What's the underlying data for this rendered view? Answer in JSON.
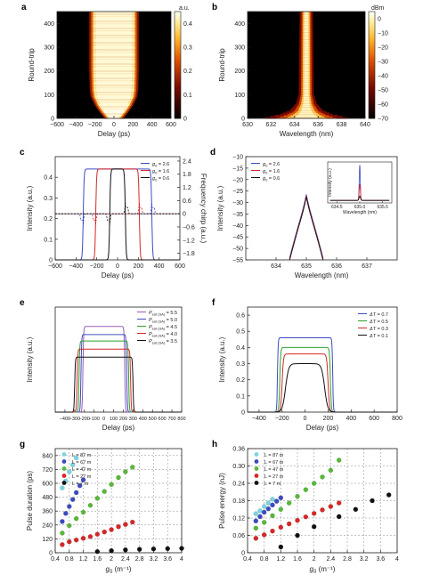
{
  "chart_data": [
    {
      "id": "a",
      "panel_label": "a",
      "type": "heatmap",
      "xlabel": "Delay (ps)",
      "ylabel": "Round-trip",
      "xlim": [
        -600,
        600
      ],
      "ylim": [
        0,
        450
      ],
      "xticks": [
        -600,
        -400,
        -200,
        0,
        200,
        400,
        600
      ],
      "yticks": [
        0,
        100,
        200,
        300,
        400
      ],
      "colorbar": {
        "unit": "a.u.",
        "ticks": [
          "0.4",
          "0.3",
          "0.2",
          "0.1",
          "0"
        ],
        "tick_values": [
          0.4,
          0.3,
          0.2,
          0.1,
          0
        ],
        "range": [
          0,
          0.45
        ]
      },
      "trace": {
        "type": "pulse-window",
        "rows": [
          [
            0,
            60,
            200
          ],
          [
            30,
            120,
            280
          ],
          [
            60,
            170,
            300
          ],
          [
            90,
            205,
            320
          ],
          [
            120,
            215,
            320
          ],
          [
            200,
            220,
            320
          ],
          [
            450,
            220,
            320
          ]
        ]
      },
      "grid": false
    },
    {
      "id": "b",
      "panel_label": "b",
      "type": "heatmap",
      "xlabel": "Wavelength (nm)",
      "ylabel": "Round-trip",
      "xlim": [
        630,
        640
      ],
      "ylim": [
        0,
        450
      ],
      "xticks": [
        630,
        632,
        634,
        636,
        638,
        640
      ],
      "yticks": [
        0,
        100,
        200,
        300,
        400
      ],
      "colorbar": {
        "unit": "dBm",
        "ticks": [
          "0",
          "-10",
          "-20",
          "-30",
          "-40",
          "-50",
          "-60",
          "-70"
        ],
        "tick_values": [
          0,
          -10,
          -20,
          -30,
          -40,
          -50,
          -60,
          -70
        ],
        "range": [
          -70,
          5
        ]
      },
      "trace": {
        "type": "spectrum-line",
        "center": 635.0,
        "rows": [
          [
            0,
            2.2
          ],
          [
            15,
            1.4
          ],
          [
            30,
            0.9
          ],
          [
            60,
            0.55
          ],
          [
            100,
            0.4
          ],
          [
            450,
            0.35
          ]
        ]
      },
      "grid": false
    },
    {
      "id": "c",
      "panel_label": "c",
      "type": "line",
      "xlabel": "Delay (ps)",
      "ylabel": "Intensity (a.u.)",
      "y2label": "Frequency chirp (a.u.)",
      "xlim": [
        -600,
        600
      ],
      "ylim": [
        0,
        0.5
      ],
      "y2lim": [
        -2.1,
        2.6
      ],
      "xticks": [
        -600,
        -400,
        -200,
        0,
        200,
        400,
        600
      ],
      "yticks": [
        0.0,
        0.1,
        0.2,
        0.3,
        0.4
      ],
      "y2ticks": [
        -1.8,
        -1.2,
        -0.6,
        0.0,
        0.6,
        1.2,
        1.8,
        2.4
      ],
      "legend_position": "top-right",
      "series": [
        {
          "name": "g0 = 2.6",
          "sub": "0",
          "label_pre": "g",
          "label_post": " = 2.6",
          "color": "#3b4cc0",
          "values": {
            "amp": 0.44,
            "x1": -330,
            "x2": 330,
            "edge": 14
          },
          "chirp": {
            "x1": -330,
            "x2": 330,
            "level": 0.82,
            "edge": 14
          }
        },
        {
          "name": "g0 = 1.6",
          "sub": "0",
          "label_pre": "g",
          "label_post": " = 1.6",
          "color": "#d62728",
          "values": {
            "amp": 0.44,
            "x1": -210,
            "x2": 210,
            "edge": 14
          },
          "chirp": {
            "x1": -210,
            "x2": 210,
            "level": 0.82,
            "edge": 14
          }
        },
        {
          "name": "g0 = 0.6",
          "sub": "0",
          "label_pre": "g",
          "label_post": " = 0.6",
          "color": "#111111",
          "values": {
            "amp": 0.44,
            "x1": -75,
            "x2": 75,
            "edge": 14
          },
          "chirp": {
            "x1": -75,
            "x2": 75,
            "level": 0.82,
            "edge": 14
          }
        }
      ],
      "hline_chirp": 0.0,
      "grid": false
    },
    {
      "id": "d",
      "panel_label": "d",
      "type": "line",
      "xlabel": "Wavelength (nm)",
      "ylabel": "Intensity (a.u.)",
      "xlim": [
        633,
        638
      ],
      "ylim": [
        -55,
        -10
      ],
      "xticks": [
        634,
        635,
        636,
        637
      ],
      "yticks": [
        -55,
        -50,
        -45,
        -40,
        -35,
        -30,
        -25,
        -20,
        -15,
        -10
      ],
      "legend_position": "top-left",
      "series": [
        {
          "name": "g0 = 2.6",
          "sub": "0",
          "label_pre": "g",
          "label_post": " = 2.6",
          "color": "#3b4cc0",
          "values": {
            "center": 635.0,
            "peak": -26.5,
            "width": 0.09,
            "decay": 15
          }
        },
        {
          "name": "g0 = 1.6",
          "sub": "0",
          "label_pre": "g",
          "label_post": " = 1.6",
          "color": "#d62728",
          "values": {
            "center": 635.0,
            "peak": -27.0,
            "width": 0.085,
            "decay": 15
          }
        },
        {
          "name": "g0 = 0.6",
          "sub": "0",
          "label_pre": "g",
          "label_post": " = 0.6",
          "color": "#111111",
          "values": {
            "center": 635.0,
            "peak": -27.5,
            "width": 0.08,
            "decay": 15
          }
        }
      ],
      "inset": {
        "xlabel": "Wavelength (nm)",
        "ylabel": "Intensity (a.u.)",
        "xlim": [
          634.3,
          635.7
        ],
        "xticks": [
          634.5,
          635.0,
          635.5
        ],
        "series": [
          {
            "color": "#3b4cc0",
            "center": 635.0,
            "height": 1.0,
            "width": 0.012
          },
          {
            "color": "#d62728",
            "center": 635.0,
            "height": 0.45,
            "width": 0.014
          },
          {
            "color": "#111111",
            "center": 635.0,
            "height": 0.12,
            "width": 0.016
          }
        ]
      },
      "grid": false
    },
    {
      "id": "e",
      "panel_label": "e",
      "type": "line",
      "xlabel": "Delay (ps)",
      "ylabel": "Intensity (a.u.)",
      "xlim": [
        -500,
        800
      ],
      "ylim": [
        0,
        0.65
      ],
      "xticks": [
        -400,
        -300,
        -200,
        -100,
        0,
        100,
        200,
        300,
        400,
        500,
        600,
        700,
        800
      ],
      "xtick_labels": [
        "-400",
        "-300",
        "-200",
        "-100",
        "0",
        "100",
        "200",
        "300",
        "400",
        "500",
        "600",
        "700",
        "800"
      ],
      "yticks": [],
      "legend_position": "top-right",
      "series": [
        {
          "name": "Psat(sa) = 5.5",
          "label_pre": "P",
          "sub": "sat (SA)",
          "label_post": " = 5.5",
          "color": "#9b59b6",
          "values": {
            "amp": 0.53,
            "x1": -215,
            "x2": 215,
            "edge": 12
          }
        },
        {
          "name": "Psat(sa) = 5.0",
          "label_pre": "P",
          "sub": "sat (SA)",
          "label_post": " = 5.0",
          "color": "#3b4cc0",
          "values": {
            "amp": 0.48,
            "x1": -235,
            "x2": 235,
            "edge": 12
          }
        },
        {
          "name": "Psat(sa) = 4.5",
          "label_pre": "P",
          "sub": "sat (SA)",
          "label_post": " = 4.5",
          "color": "#2ca02c",
          "values": {
            "amp": 0.44,
            "x1": -255,
            "x2": 255,
            "edge": 12
          }
        },
        {
          "name": "Psat(sa) = 4.0",
          "label_pre": "P",
          "sub": "sat (SA)",
          "label_post": " = 4.0",
          "color": "#d62728",
          "values": {
            "amp": 0.39,
            "x1": -275,
            "x2": 275,
            "edge": 12
          }
        },
        {
          "name": "Psat(sa) = 3.5",
          "label_pre": "P",
          "sub": "sat (SA)",
          "label_post": " = 3.5",
          "color": "#111111",
          "values": {
            "amp": 0.34,
            "x1": -300,
            "x2": 300,
            "edge": 12
          }
        }
      ],
      "grid": false
    },
    {
      "id": "f",
      "panel_label": "f",
      "type": "line",
      "xlabel": "Delay (ps)",
      "ylabel": "Intensity (a.u.)",
      "xlim": [
        -500,
        800
      ],
      "ylim": [
        0,
        0.65
      ],
      "xticks": [
        -400,
        -200,
        0,
        200,
        400,
        600,
        800
      ],
      "yticks": [
        0.0,
        0.1,
        0.2,
        0.3,
        0.4,
        0.5,
        0.6
      ],
      "legend_position": "top-right",
      "series": [
        {
          "name": "ΔT = 0.7",
          "label_pre": "ΔT",
          "sub": "",
          "label_post": " = 0.7",
          "color": "#3b4cc0",
          "values": {
            "amp": 0.46,
            "x1": -240,
            "x2": 240,
            "edge": 10
          }
        },
        {
          "name": "ΔT = 0.5",
          "label_pre": "ΔT",
          "sub": "",
          "label_post": " = 0.5",
          "color": "#2ca02c",
          "values": {
            "amp": 0.4,
            "x1": -220,
            "x2": 220,
            "edge": 14
          }
        },
        {
          "name": "ΔT = 0.3",
          "label_pre": "ΔT",
          "sub": "",
          "label_post": " = 0.3",
          "color": "#d62728",
          "values": {
            "amp": 0.36,
            "x1": -200,
            "x2": 200,
            "edge": 20
          }
        },
        {
          "name": "ΔT = 0.1",
          "label_pre": "ΔT",
          "sub": "",
          "label_post": " = 0.1",
          "color": "#111111",
          "values": {
            "amp": 0.3,
            "x1": -170,
            "x2": 170,
            "edge": 45
          }
        }
      ],
      "grid": false
    },
    {
      "id": "g",
      "panel_label": "g",
      "type": "scatter",
      "xlabel_pre": "g",
      "xlabel_sub": "0",
      "xlabel_post": " (m⁻¹)",
      "ylabel": "Pulse duration (ps)",
      "xlim": [
        0.4,
        4.0
      ],
      "ylim": [
        0,
        900
      ],
      "xticks": [
        0.4,
        0.8,
        1.2,
        1.6,
        2.0,
        2.4,
        2.8,
        3.2,
        3.6,
        4.0
      ],
      "yticks": [
        0,
        120,
        240,
        360,
        480,
        600,
        720,
        840
      ],
      "legend_position": "top-left",
      "series": [
        {
          "name": "L = 87 m",
          "color": "#7fd3e0",
          "points": [
            [
              0.6,
              560
            ],
            [
              0.7,
              620
            ],
            [
              0.8,
              700
            ],
            [
              0.9,
              760
            ],
            [
              1.0,
              820
            ]
          ]
        },
        {
          "name": "L = 67 m",
          "color": "#3b4cc0",
          "points": [
            [
              0.6,
              270
            ],
            [
              0.7,
              340
            ],
            [
              0.8,
              400
            ],
            [
              0.9,
              460
            ],
            [
              1.0,
              520
            ],
            [
              1.1,
              580
            ],
            [
              1.2,
              630
            ]
          ]
        },
        {
          "name": "L = 47 m",
          "color": "#58b83a",
          "points": [
            [
              0.6,
              170
            ],
            [
              0.8,
              235
            ],
            [
              1.0,
              295
            ],
            [
              1.2,
              350
            ],
            [
              1.4,
              410
            ],
            [
              1.6,
              470
            ],
            [
              1.8,
              530
            ],
            [
              2.0,
              590
            ],
            [
              2.2,
              650
            ],
            [
              2.4,
              700
            ],
            [
              2.6,
              740
            ]
          ]
        },
        {
          "name": "L = 27 m",
          "color": "#d62728",
          "points": [
            [
              0.6,
              70
            ],
            [
              0.8,
              95
            ],
            [
              1.0,
              110
            ],
            [
              1.2,
              125
            ],
            [
              1.4,
              140
            ],
            [
              1.6,
              160
            ],
            [
              1.8,
              180
            ],
            [
              2.0,
              200
            ],
            [
              2.2,
              225
            ],
            [
              2.4,
              245
            ],
            [
              2.6,
              265
            ]
          ]
        },
        {
          "name": "L = 7 m",
          "color": "#111111",
          "points": [
            [
              1.6,
              10
            ],
            [
              2.0,
              18
            ],
            [
              2.4,
              25
            ],
            [
              2.8,
              30
            ],
            [
              3.2,
              33
            ],
            [
              3.6,
              36
            ],
            [
              4.0,
              38
            ]
          ]
        }
      ],
      "grid": true
    },
    {
      "id": "h",
      "panel_label": "h",
      "type": "scatter",
      "xlabel_pre": "g",
      "xlabel_sub": "0",
      "xlabel_post": " (m⁻¹)",
      "ylabel": "Pulse energy (nJ)",
      "xlim": [
        0.4,
        4.0
      ],
      "ylim": [
        0,
        0.36
      ],
      "xticks": [
        0.4,
        0.8,
        1.2,
        1.6,
        2.0,
        2.4,
        2.8,
        3.2,
        3.6,
        4.0
      ],
      "yticks": [
        0.0,
        0.06,
        0.12,
        0.18,
        0.24,
        0.3,
        0.36
      ],
      "ytick_labels": [
        "0",
        "0.06",
        "0.12",
        "0.18",
        "0.24",
        "0.30",
        "0.36"
      ],
      "legend_position": "top-left",
      "series": [
        {
          "name": "L = 87 m",
          "color": "#7fd3e0",
          "points": [
            [
              0.6,
              0.135
            ],
            [
              0.7,
              0.145
            ],
            [
              0.8,
              0.16
            ],
            [
              0.9,
              0.172
            ],
            [
              1.0,
              0.185
            ]
          ]
        },
        {
          "name": "L = 67 m",
          "color": "#3b4cc0",
          "points": [
            [
              0.6,
              0.11
            ],
            [
              0.7,
              0.125
            ],
            [
              0.8,
              0.14
            ],
            [
              0.9,
              0.152
            ],
            [
              1.0,
              0.165
            ],
            [
              1.1,
              0.178
            ],
            [
              1.2,
              0.19
            ]
          ]
        },
        {
          "name": "L = 47 m",
          "color": "#58b83a",
          "points": [
            [
              0.6,
              0.085
            ],
            [
              0.8,
              0.105
            ],
            [
              1.0,
              0.128
            ],
            [
              1.2,
              0.15
            ],
            [
              1.4,
              0.172
            ],
            [
              1.6,
              0.195
            ],
            [
              1.8,
              0.218
            ],
            [
              2.0,
              0.24
            ],
            [
              2.2,
              0.262
            ],
            [
              2.4,
              0.285
            ],
            [
              2.6,
              0.32
            ]
          ]
        },
        {
          "name": "L = 27 m",
          "color": "#d62728",
          "points": [
            [
              0.6,
              0.05
            ],
            [
              0.8,
              0.062
            ],
            [
              1.0,
              0.075
            ],
            [
              1.2,
              0.088
            ],
            [
              1.4,
              0.1
            ],
            [
              1.6,
              0.112
            ],
            [
              1.8,
              0.124
            ],
            [
              2.0,
              0.136
            ],
            [
              2.2,
              0.148
            ],
            [
              2.4,
              0.16
            ],
            [
              2.6,
              0.172
            ]
          ]
        },
        {
          "name": "L = 7 m",
          "color": "#111111",
          "points": [
            [
              1.2,
              0.02
            ],
            [
              1.6,
              0.06
            ],
            [
              2.0,
              0.09
            ],
            [
              2.6,
              0.125
            ],
            [
              3.0,
              0.15
            ],
            [
              3.4,
              0.18
            ],
            [
              3.8,
              0.2
            ]
          ]
        }
      ],
      "grid": true
    }
  ]
}
